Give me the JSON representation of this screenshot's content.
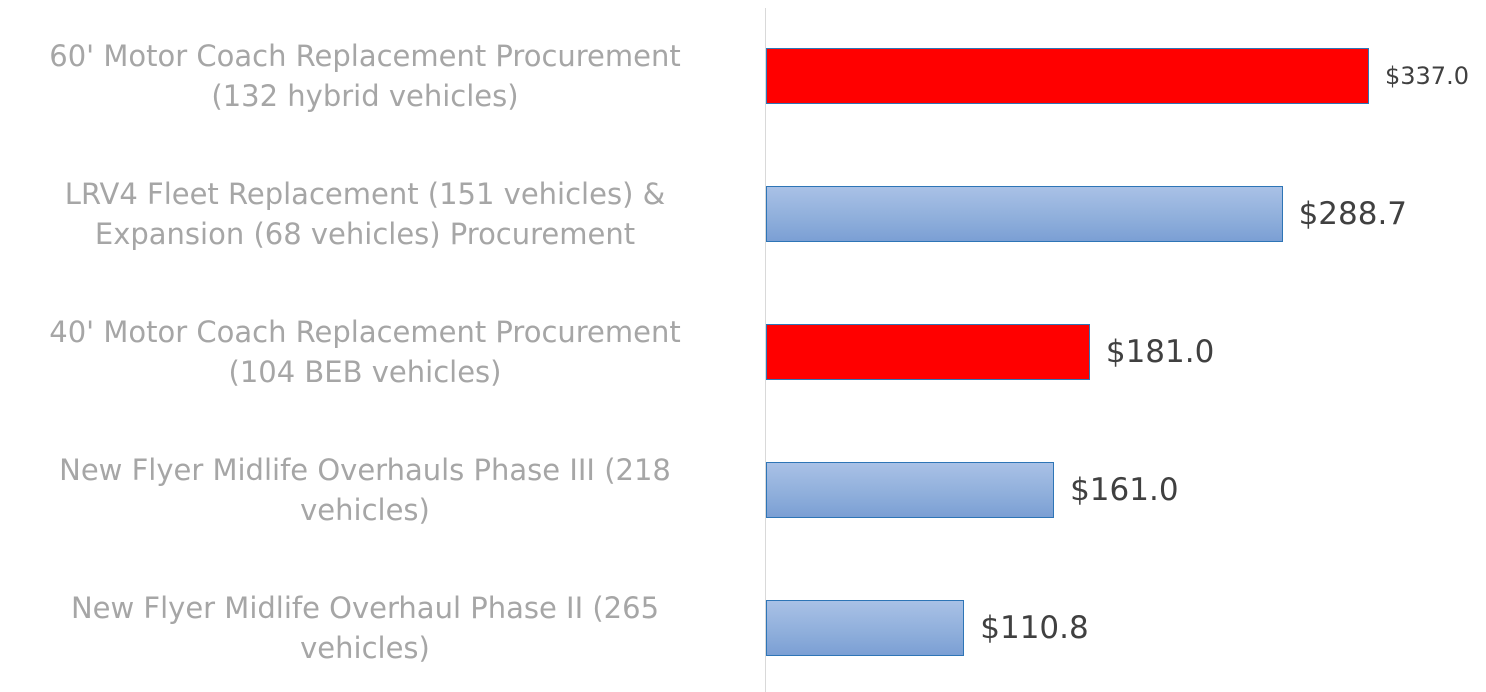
{
  "chart_data": {
    "type": "hbar",
    "categories": [
      "60' Motor Coach Replacement Procurement\n(132 hybrid vehicles)",
      "LRV4 Fleet Replacement (151 vehicles) &\nExpansion (68 vehicles) Procurement",
      "40' Motor Coach Replacement Procurement\n(104 BEB vehicles)",
      "New Flyer Midlife Overhauls Phase III (218\nvehicles)",
      "New Flyer Midlife Overhaul Phase II (265\nvehicles)"
    ],
    "values": [
      337.0,
      288.7,
      181.0,
      161.0,
      110.8
    ],
    "value_labels": [
      "$337.0",
      "$288.7",
      "$181.0",
      "$161.0",
      "$110.8"
    ],
    "colors": [
      "#ff0000",
      "#8eaedb",
      "#ff0000",
      "#8eaedb",
      "#8eaedb"
    ]
  }
}
